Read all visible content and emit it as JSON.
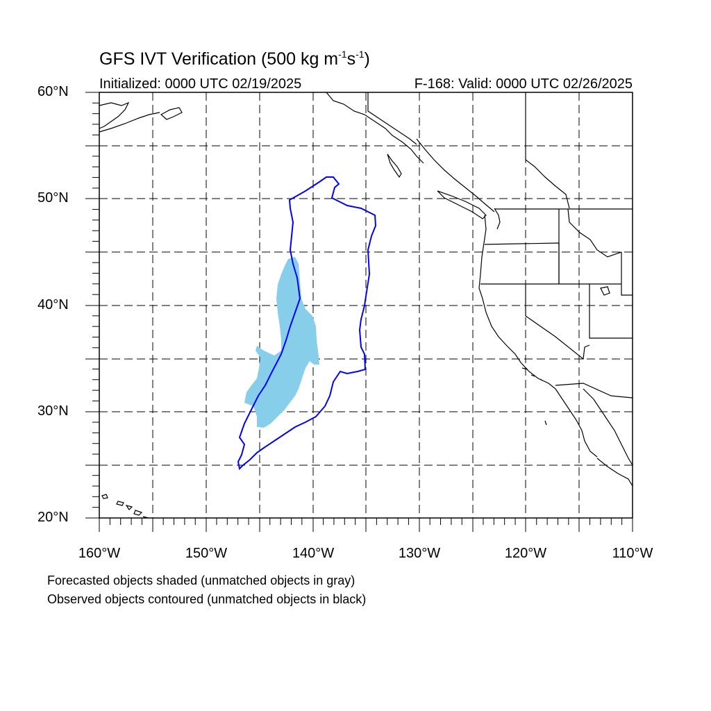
{
  "title": {
    "main": "GFS IVT Verification (500 kg m",
    "exp1": "-1",
    "mid": "s",
    "exp2": "-1",
    "close": ")"
  },
  "subtitle": {
    "initialized": "Initialized: 0000 UTC 02/19/2025",
    "valid": "F-168: Valid: 0000 UTC 02/26/2025"
  },
  "axes": {
    "lat_labels": [
      "60°N",
      "50°N",
      "40°N",
      "30°N",
      "20°N"
    ],
    "lon_labels": [
      "160°W",
      "150°W",
      "140°W",
      "130°W",
      "120°W",
      "110°W"
    ],
    "lat_range": [
      20,
      60
    ],
    "lon_range": [
      -160,
      -110
    ],
    "grid": "dashed every 5°"
  },
  "legend": {
    "line1": "Forecasted objects shaded (unmatched objects in gray)",
    "line2": "Observed objects contoured (unmatched objects in black)"
  },
  "colors": {
    "forecast_fill": "#87ceeb",
    "observed_contour": "#0000ff",
    "coastline": "#000000"
  }
}
